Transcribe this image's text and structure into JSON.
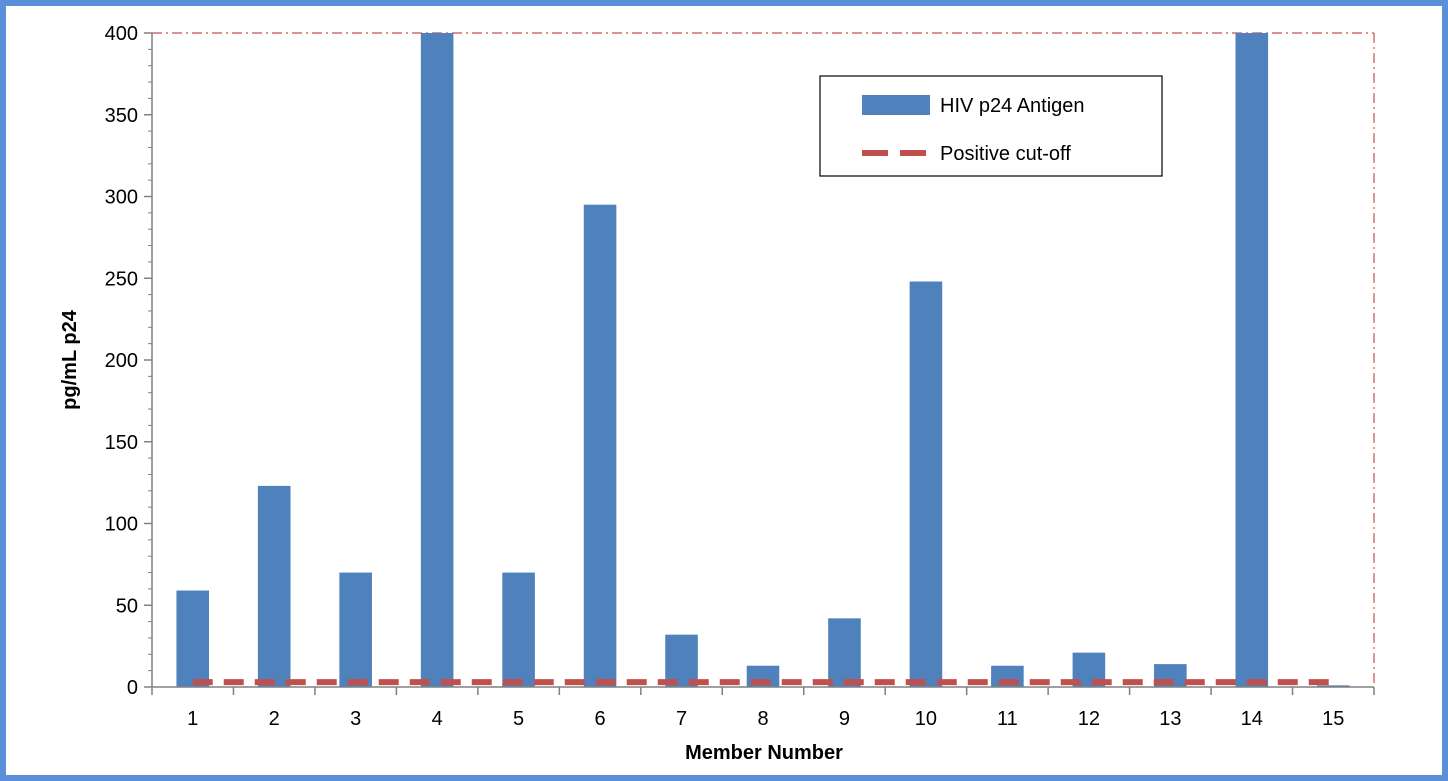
{
  "chart_data": {
    "type": "bar",
    "xlabel": "Member Number",
    "ylabel": "pg/mL p24",
    "ylim": [
      0,
      400
    ],
    "yticks": [
      0,
      50,
      100,
      150,
      200,
      250,
      300,
      350,
      400
    ],
    "categories": [
      "1",
      "2",
      "3",
      "4",
      "5",
      "6",
      "7",
      "8",
      "9",
      "10",
      "11",
      "12",
      "13",
      "14",
      "15"
    ],
    "series": [
      {
        "name": "HIV p24 Antigen",
        "type": "bar",
        "color": "#4f81bd",
        "values": [
          59,
          123,
          70,
          400,
          70,
          295,
          32,
          13,
          42,
          248,
          13,
          21,
          14,
          400,
          1
        ]
      },
      {
        "name": "Positive cut-off",
        "type": "line",
        "style": "dashed",
        "color": "#c0504d",
        "values": [
          3,
          3,
          3,
          3,
          3,
          3,
          3,
          3,
          3,
          3,
          3,
          3,
          3,
          3,
          3
        ]
      }
    ],
    "grid": false,
    "legend": "top-right",
    "frame_color": "#5b8fd8"
  }
}
